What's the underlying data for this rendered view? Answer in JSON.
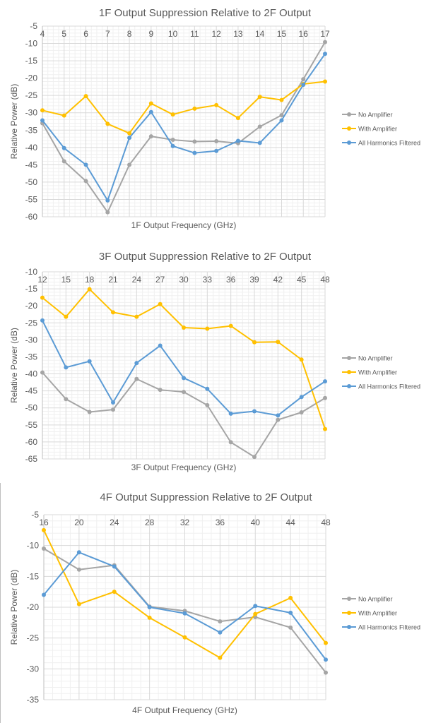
{
  "colors": {
    "no_amp": "#a5a5a5",
    "with_amp": "#ffc000",
    "all_filtered": "#5b9bd5",
    "grid_major": "#d9d9d9",
    "grid_minor": "#f0f0f0",
    "axis": "#bfbfbf",
    "text": "#595959"
  },
  "chart_data": [
    {
      "type": "line",
      "title": "1F Output Suppression Relative to 2F Output",
      "xlabel": "1F Output Frequency (GHz)",
      "ylabel": "Relative Power (dB)",
      "categories": [
        "4",
        "5",
        "6",
        "7",
        "8",
        "9",
        "10",
        "11",
        "12",
        "13",
        "14",
        "15",
        "16",
        "17"
      ],
      "ylim": [
        -60,
        -5
      ],
      "ymajor": 5,
      "yminor": 1,
      "xaxis_position": "top",
      "grid": true,
      "legend": "right",
      "series": [
        {
          "name": "No Amplifier",
          "color_key": "no_amp",
          "values": [
            -33,
            -44,
            -49.7,
            -58.7,
            -45,
            -36.8,
            -37.8,
            -38.3,
            -38.2,
            -38.8,
            -34,
            -30.7,
            -20.3,
            -9.6
          ]
        },
        {
          "name": "With Amplifier",
          "color_key": "with_amp",
          "values": [
            -29.3,
            -30.8,
            -25.2,
            -33.2,
            -35.9,
            -27.3,
            -30.5,
            -28.8,
            -27.8,
            -31.5,
            -25.4,
            -26.3,
            -21.7,
            -21
          ]
        },
        {
          "name": "All Harmonics Filtered",
          "color_key": "all_filtered",
          "values": [
            -32.2,
            -40.2,
            -45,
            -55.3,
            -37.2,
            -29.8,
            -39.6,
            -41.6,
            -41,
            -38.1,
            -38.7,
            -32.2,
            -21.9,
            -13
          ]
        }
      ]
    },
    {
      "type": "line",
      "title": "3F Output Suppression Relative to 2F Output",
      "xlabel": "3F Output Frequency (GHz)",
      "ylabel": "Relative Power (dB)",
      "categories": [
        "12",
        "15",
        "18",
        "21",
        "24",
        "27",
        "30",
        "33",
        "36",
        "39",
        "42",
        "45",
        "48"
      ],
      "ylim": [
        -65,
        -10
      ],
      "ymajor": 5,
      "yminor": 1,
      "xaxis_position": "top",
      "grid": true,
      "legend": "right",
      "series": [
        {
          "name": "No Amplifier",
          "color_key": "no_amp",
          "values": [
            -39.6,
            -47.4,
            -51.2,
            -50.5,
            -41.5,
            -44.7,
            -45.3,
            -49.2,
            -60.1,
            -64.4,
            -53.5,
            -51.3,
            -47.1
          ]
        },
        {
          "name": "With Amplifier",
          "color_key": "with_amp",
          "values": [
            -17.6,
            -23.2,
            -15.1,
            -21.9,
            -23.2,
            -19.5,
            -26.4,
            -26.7,
            -25.9,
            -30.7,
            -30.6,
            -35.8,
            -56.2
          ]
        },
        {
          "name": "All Harmonics Filtered",
          "color_key": "all_filtered",
          "values": [
            -24.3,
            -38.1,
            -36.3,
            -48.4,
            -36.8,
            -31.7,
            -41.2,
            -44.4,
            -51.7,
            -51,
            -52.2,
            -46.8,
            -42.2
          ]
        }
      ]
    },
    {
      "type": "line",
      "title": "4F Output Suppression Relative to 2F Output",
      "xlabel": "4F Output Frequency (GHz)",
      "ylabel": "Relative Power (dB)",
      "categories": [
        "16",
        "20",
        "24",
        "28",
        "32",
        "36",
        "40",
        "44",
        "48"
      ],
      "ylim": [
        -35,
        -5
      ],
      "ymajor": 5,
      "yminor": 1,
      "xaxis_position": "top",
      "grid": true,
      "legend": "right",
      "series": [
        {
          "name": "No Amplifier",
          "color_key": "no_amp",
          "values": [
            -10.5,
            -13.9,
            -13.2,
            -19.9,
            -20.6,
            -22.3,
            -21.6,
            -23.3,
            -30.6
          ]
        },
        {
          "name": "With Amplifier",
          "color_key": "with_amp",
          "values": [
            -7.5,
            -19.5,
            -17.5,
            -21.7,
            -24.9,
            -28.2,
            -21.1,
            -18.5,
            -25.8
          ]
        },
        {
          "name": "All Harmonics Filtered",
          "color_key": "all_filtered",
          "values": [
            -18,
            -11.1,
            -13.4,
            -20,
            -21,
            -24.1,
            -19.8,
            -20.9,
            -28.5
          ]
        }
      ]
    }
  ]
}
